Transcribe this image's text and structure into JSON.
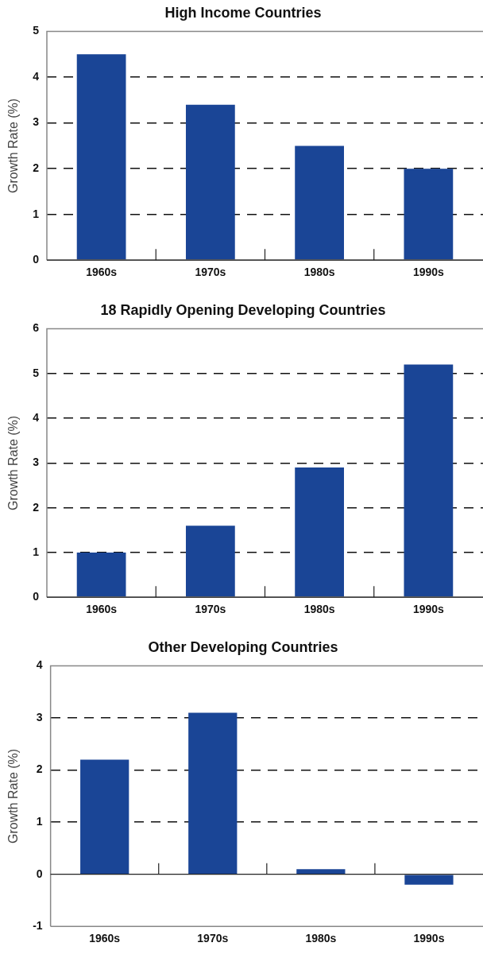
{
  "chart_data": [
    {
      "type": "bar",
      "title": "High Income Countries",
      "ylabel": "Growth Rate (%)",
      "categories": [
        "1960s",
        "1970s",
        "1980s",
        "1990s"
      ],
      "values": [
        4.5,
        3.4,
        2.5,
        2.0
      ],
      "color": "#1a4596",
      "ylim": [
        0,
        5
      ],
      "yticks": [
        0,
        1,
        2,
        3,
        4,
        5
      ],
      "grid": "y"
    },
    {
      "type": "bar",
      "title": "18 Rapidly Opening Developing Countries",
      "ylabel": "Growth Rate (%)",
      "categories": [
        "1960s",
        "1970s",
        "1980s",
        "1990s"
      ],
      "values": [
        1.0,
        1.6,
        2.9,
        5.2
      ],
      "color": "#1a4596",
      "ylim": [
        0,
        6
      ],
      "yticks": [
        0,
        1,
        2,
        3,
        4,
        5,
        6
      ],
      "grid": "y"
    },
    {
      "type": "bar",
      "title": "Other Developing Countries",
      "ylabel": "Growth Rate (%)",
      "categories": [
        "1960s",
        "1970s",
        "1980s",
        "1990s"
      ],
      "values": [
        2.2,
        3.1,
        0.1,
        -0.2
      ],
      "color": "#1a4596",
      "ylim": [
        -1,
        4
      ],
      "yticks": [
        -1,
        0,
        1,
        2,
        3,
        4
      ],
      "grid": "y"
    }
  ]
}
